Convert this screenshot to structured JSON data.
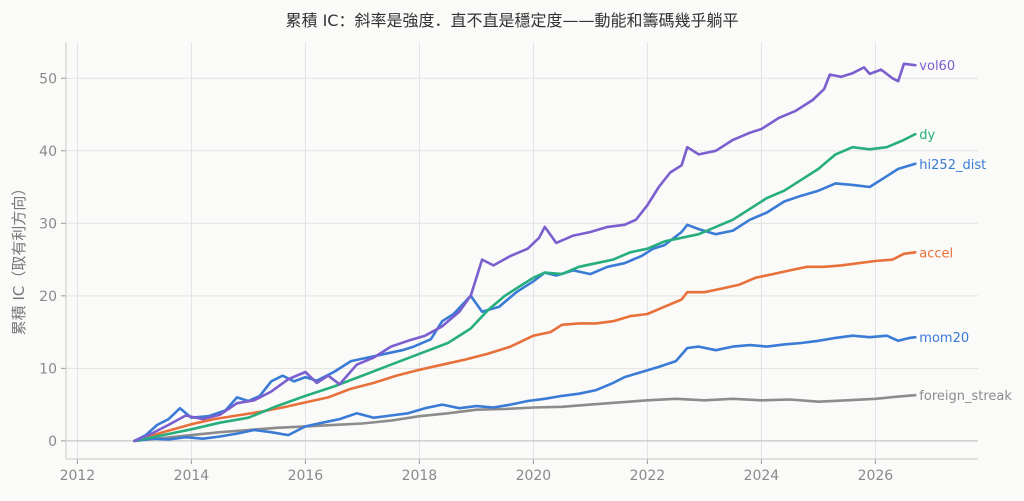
{
  "chart_data": {
    "type": "line",
    "title": "累積 IC：斜率是強度．直不直是穩定度——動能和籌碼幾乎躺平",
    "xlabel": "",
    "ylabel": "累積 IC（取有利方向）",
    "xlim": [
      2011.8,
      2027.8
    ],
    "ylim": [
      -2.5,
      55
    ],
    "x_ticks": [
      2012,
      2014,
      2016,
      2018,
      2020,
      2022,
      2024,
      2026
    ],
    "y_ticks": [
      0,
      10,
      20,
      30,
      40,
      50
    ],
    "grid": true,
    "legend": "labels at line ends",
    "series": [
      {
        "name": "vol60",
        "color": "#7b5fcf",
        "points": [
          [
            2013.0,
            0
          ],
          [
            2013.3,
            1.0
          ],
          [
            2013.6,
            2.2
          ],
          [
            2013.9,
            3.5
          ],
          [
            2014.2,
            3.0
          ],
          [
            2014.5,
            3.6
          ],
          [
            2014.8,
            5.2
          ],
          [
            2015.1,
            5.6
          ],
          [
            2015.4,
            6.8
          ],
          [
            2015.7,
            8.5
          ],
          [
            2016.0,
            9.5
          ],
          [
            2016.2,
            8.0
          ],
          [
            2016.4,
            9.0
          ],
          [
            2016.6,
            7.8
          ],
          [
            2016.9,
            10.5
          ],
          [
            2017.2,
            11.5
          ],
          [
            2017.5,
            13.0
          ],
          [
            2017.8,
            13.8
          ],
          [
            2018.1,
            14.5
          ],
          [
            2018.4,
            15.8
          ],
          [
            2018.7,
            17.8
          ],
          [
            2018.9,
            20.0
          ],
          [
            2019.1,
            25.0
          ],
          [
            2019.3,
            24.2
          ],
          [
            2019.6,
            25.5
          ],
          [
            2019.9,
            26.5
          ],
          [
            2020.1,
            28.0
          ],
          [
            2020.2,
            29.5
          ],
          [
            2020.4,
            27.3
          ],
          [
            2020.7,
            28.3
          ],
          [
            2021.0,
            28.8
          ],
          [
            2021.3,
            29.5
          ],
          [
            2021.6,
            29.8
          ],
          [
            2021.8,
            30.5
          ],
          [
            2022.0,
            32.5
          ],
          [
            2022.2,
            35.0
          ],
          [
            2022.4,
            37.0
          ],
          [
            2022.6,
            38.0
          ],
          [
            2022.7,
            40.5
          ],
          [
            2022.9,
            39.5
          ],
          [
            2023.2,
            40.0
          ],
          [
            2023.5,
            41.5
          ],
          [
            2023.8,
            42.5
          ],
          [
            2024.0,
            43.0
          ],
          [
            2024.3,
            44.5
          ],
          [
            2024.6,
            45.5
          ],
          [
            2024.9,
            47.0
          ],
          [
            2025.1,
            48.5
          ],
          [
            2025.2,
            50.5
          ],
          [
            2025.4,
            50.2
          ],
          [
            2025.6,
            50.7
          ],
          [
            2025.8,
            51.5
          ],
          [
            2025.9,
            50.6
          ],
          [
            2026.1,
            51.2
          ],
          [
            2026.3,
            50.0
          ],
          [
            2026.4,
            49.6
          ],
          [
            2026.5,
            52.0
          ],
          [
            2026.7,
            51.8
          ]
        ]
      },
      {
        "name": "dy",
        "color": "#27ae7f",
        "points": [
          [
            2013.0,
            0
          ],
          [
            2013.5,
            0.8
          ],
          [
            2014.0,
            1.6
          ],
          [
            2014.5,
            2.5
          ],
          [
            2015.0,
            3.2
          ],
          [
            2015.5,
            4.8
          ],
          [
            2016.0,
            6.2
          ],
          [
            2016.5,
            7.5
          ],
          [
            2017.0,
            9.0
          ],
          [
            2017.5,
            10.5
          ],
          [
            2018.0,
            12.0
          ],
          [
            2018.5,
            13.5
          ],
          [
            2018.9,
            15.5
          ],
          [
            2019.2,
            18.0
          ],
          [
            2019.5,
            20.0
          ],
          [
            2019.8,
            21.5
          ],
          [
            2020.0,
            22.5
          ],
          [
            2020.2,
            23.2
          ],
          [
            2020.5,
            23.0
          ],
          [
            2020.8,
            24.0
          ],
          [
            2021.1,
            24.5
          ],
          [
            2021.4,
            25.0
          ],
          [
            2021.7,
            26.0
          ],
          [
            2022.0,
            26.5
          ],
          [
            2022.3,
            27.5
          ],
          [
            2022.6,
            28.0
          ],
          [
            2022.9,
            28.5
          ],
          [
            2023.2,
            29.5
          ],
          [
            2023.5,
            30.5
          ],
          [
            2023.8,
            32.0
          ],
          [
            2024.1,
            33.5
          ],
          [
            2024.4,
            34.5
          ],
          [
            2024.7,
            36.0
          ],
          [
            2025.0,
            37.5
          ],
          [
            2025.3,
            39.5
          ],
          [
            2025.6,
            40.5
          ],
          [
            2025.9,
            40.2
          ],
          [
            2026.2,
            40.5
          ],
          [
            2026.5,
            41.5
          ],
          [
            2026.7,
            42.3
          ]
        ]
      },
      {
        "name": "hi252_dist",
        "color": "#3a7bd5",
        "points": [
          [
            2013.0,
            0
          ],
          [
            2013.2,
            0.8
          ],
          [
            2013.4,
            2.2
          ],
          [
            2013.6,
            3.0
          ],
          [
            2013.8,
            4.5
          ],
          [
            2014.0,
            3.2
          ],
          [
            2014.3,
            3.4
          ],
          [
            2014.6,
            4.2
          ],
          [
            2014.8,
            6.0
          ],
          [
            2015.0,
            5.5
          ],
          [
            2015.2,
            6.2
          ],
          [
            2015.4,
            8.2
          ],
          [
            2015.6,
            9.0
          ],
          [
            2015.8,
            8.2
          ],
          [
            2016.0,
            8.8
          ],
          [
            2016.2,
            8.3
          ],
          [
            2016.5,
            9.5
          ],
          [
            2016.8,
            11.0
          ],
          [
            2017.1,
            11.5
          ],
          [
            2017.4,
            12.0
          ],
          [
            2017.7,
            12.5
          ],
          [
            2017.9,
            13.0
          ],
          [
            2018.2,
            14.0
          ],
          [
            2018.4,
            16.5
          ],
          [
            2018.6,
            17.5
          ],
          [
            2018.9,
            20.0
          ],
          [
            2019.1,
            17.8
          ],
          [
            2019.4,
            18.5
          ],
          [
            2019.7,
            20.5
          ],
          [
            2020.0,
            22.0
          ],
          [
            2020.2,
            23.2
          ],
          [
            2020.4,
            22.8
          ],
          [
            2020.7,
            23.5
          ],
          [
            2021.0,
            23.0
          ],
          [
            2021.3,
            24.0
          ],
          [
            2021.6,
            24.5
          ],
          [
            2021.9,
            25.5
          ],
          [
            2022.1,
            26.5
          ],
          [
            2022.3,
            27.0
          ],
          [
            2022.6,
            28.8
          ],
          [
            2022.7,
            29.8
          ],
          [
            2022.9,
            29.2
          ],
          [
            2023.2,
            28.5
          ],
          [
            2023.5,
            29.0
          ],
          [
            2023.8,
            30.5
          ],
          [
            2024.1,
            31.5
          ],
          [
            2024.4,
            33.0
          ],
          [
            2024.7,
            33.8
          ],
          [
            2025.0,
            34.5
          ],
          [
            2025.3,
            35.5
          ],
          [
            2025.6,
            35.3
          ],
          [
            2025.9,
            35.0
          ],
          [
            2026.1,
            36.0
          ],
          [
            2026.4,
            37.5
          ],
          [
            2026.7,
            38.2
          ]
        ]
      },
      {
        "name": "accel",
        "color": "#e8703a",
        "points": [
          [
            2013.0,
            0
          ],
          [
            2013.5,
            1.2
          ],
          [
            2014.0,
            2.3
          ],
          [
            2014.4,
            3.0
          ],
          [
            2014.8,
            3.5
          ],
          [
            2015.2,
            4.0
          ],
          [
            2015.6,
            4.6
          ],
          [
            2016.0,
            5.3
          ],
          [
            2016.4,
            6.0
          ],
          [
            2016.8,
            7.2
          ],
          [
            2017.2,
            8.0
          ],
          [
            2017.6,
            9.0
          ],
          [
            2018.0,
            9.8
          ],
          [
            2018.4,
            10.5
          ],
          [
            2018.8,
            11.2
          ],
          [
            2019.2,
            12.0
          ],
          [
            2019.6,
            13.0
          ],
          [
            2020.0,
            14.5
          ],
          [
            2020.3,
            15.0
          ],
          [
            2020.5,
            16.0
          ],
          [
            2020.8,
            16.2
          ],
          [
            2021.1,
            16.2
          ],
          [
            2021.4,
            16.5
          ],
          [
            2021.7,
            17.2
          ],
          [
            2022.0,
            17.5
          ],
          [
            2022.3,
            18.5
          ],
          [
            2022.6,
            19.5
          ],
          [
            2022.7,
            20.5
          ],
          [
            2023.0,
            20.5
          ],
          [
            2023.3,
            21.0
          ],
          [
            2023.6,
            21.5
          ],
          [
            2023.9,
            22.5
          ],
          [
            2024.2,
            23.0
          ],
          [
            2024.5,
            23.5
          ],
          [
            2024.8,
            24.0
          ],
          [
            2025.1,
            24.0
          ],
          [
            2025.4,
            24.2
          ],
          [
            2025.7,
            24.5
          ],
          [
            2026.0,
            24.8
          ],
          [
            2026.3,
            25.0
          ],
          [
            2026.5,
            25.8
          ],
          [
            2026.7,
            26.0
          ]
        ]
      },
      {
        "name": "mom20",
        "color": "#3a7bd5",
        "points": [
          [
            2013.0,
            0
          ],
          [
            2013.3,
            0.3
          ],
          [
            2013.6,
            0.2
          ],
          [
            2013.9,
            0.5
          ],
          [
            2014.2,
            0.3
          ],
          [
            2014.5,
            0.6
          ],
          [
            2014.8,
            1.0
          ],
          [
            2015.1,
            1.5
          ],
          [
            2015.4,
            1.2
          ],
          [
            2015.7,
            0.8
          ],
          [
            2016.0,
            2.0
          ],
          [
            2016.3,
            2.5
          ],
          [
            2016.6,
            3.0
          ],
          [
            2016.9,
            3.8
          ],
          [
            2017.2,
            3.2
          ],
          [
            2017.5,
            3.5
          ],
          [
            2017.8,
            3.8
          ],
          [
            2018.1,
            4.5
          ],
          [
            2018.4,
            5.0
          ],
          [
            2018.7,
            4.5
          ],
          [
            2019.0,
            4.8
          ],
          [
            2019.3,
            4.6
          ],
          [
            2019.6,
            5.0
          ],
          [
            2019.9,
            5.5
          ],
          [
            2020.2,
            5.8
          ],
          [
            2020.5,
            6.2
          ],
          [
            2020.8,
            6.5
          ],
          [
            2021.1,
            7.0
          ],
          [
            2021.4,
            8.0
          ],
          [
            2021.6,
            8.8
          ],
          [
            2021.9,
            9.5
          ],
          [
            2022.2,
            10.2
          ],
          [
            2022.5,
            11.0
          ],
          [
            2022.7,
            12.8
          ],
          [
            2022.9,
            13.0
          ],
          [
            2023.2,
            12.5
          ],
          [
            2023.5,
            13.0
          ],
          [
            2023.8,
            13.2
          ],
          [
            2024.1,
            13.0
          ],
          [
            2024.4,
            13.3
          ],
          [
            2024.7,
            13.5
          ],
          [
            2025.0,
            13.8
          ],
          [
            2025.3,
            14.2
          ],
          [
            2025.6,
            14.5
          ],
          [
            2025.9,
            14.3
          ],
          [
            2026.2,
            14.5
          ],
          [
            2026.4,
            13.8
          ],
          [
            2026.6,
            14.2
          ],
          [
            2026.7,
            14.3
          ]
        ]
      },
      {
        "name": "foreign_streak",
        "color": "#8c8c8c",
        "points": [
          [
            2013.0,
            0
          ],
          [
            2013.5,
            0.4
          ],
          [
            2014.0,
            0.8
          ],
          [
            2014.5,
            1.2
          ],
          [
            2015.0,
            1.5
          ],
          [
            2015.5,
            1.8
          ],
          [
            2016.0,
            2.0
          ],
          [
            2016.5,
            2.2
          ],
          [
            2017.0,
            2.4
          ],
          [
            2017.5,
            2.8
          ],
          [
            2018.0,
            3.4
          ],
          [
            2018.5,
            3.8
          ],
          [
            2019.0,
            4.3
          ],
          [
            2019.5,
            4.4
          ],
          [
            2020.0,
            4.6
          ],
          [
            2020.5,
            4.7
          ],
          [
            2021.0,
            5.0
          ],
          [
            2021.5,
            5.3
          ],
          [
            2022.0,
            5.6
          ],
          [
            2022.5,
            5.8
          ],
          [
            2023.0,
            5.6
          ],
          [
            2023.5,
            5.8
          ],
          [
            2024.0,
            5.6
          ],
          [
            2024.5,
            5.7
          ],
          [
            2025.0,
            5.4
          ],
          [
            2025.5,
            5.6
          ],
          [
            2026.0,
            5.8
          ],
          [
            2026.4,
            6.1
          ],
          [
            2026.7,
            6.3
          ]
        ]
      }
    ]
  }
}
